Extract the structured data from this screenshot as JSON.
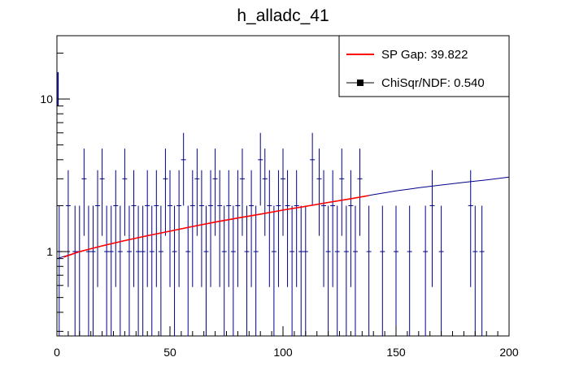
{
  "chart_data": {
    "type": "scatter",
    "title": "h_alladc_41",
    "xlabel": "",
    "ylabel": "",
    "xlim": [
      0,
      200
    ],
    "ylim": [
      0.28,
      26
    ],
    "yscale": "log",
    "grid": false,
    "legend_position": "top-right",
    "x_ticks": [
      "0",
      "50",
      "100",
      "150",
      "200"
    ],
    "y_ticks": [
      "1",
      "10"
    ],
    "legend": [
      {
        "label": "SP Gap: 39.822",
        "color": "#ff0000",
        "marker": "line"
      },
      {
        "label": "ChiSqr/NDF: 0.540",
        "color": "#000000",
        "marker": "square"
      }
    ],
    "histogram_points": [
      {
        "x": 1,
        "y": 1
      },
      {
        "x": 5,
        "y": 2
      },
      {
        "x": 8,
        "y": 1
      },
      {
        "x": 10,
        "y": 1
      },
      {
        "x": 12,
        "y": 3
      },
      {
        "x": 14,
        "y": 1
      },
      {
        "x": 16,
        "y": 1
      },
      {
        "x": 18,
        "y": 2
      },
      {
        "x": 20,
        "y": 3
      },
      {
        "x": 22,
        "y": 1
      },
      {
        "x": 24,
        "y": 1
      },
      {
        "x": 26,
        "y": 2
      },
      {
        "x": 28,
        "y": 1
      },
      {
        "x": 30,
        "y": 3
      },
      {
        "x": 32,
        "y": 1
      },
      {
        "x": 34,
        "y": 2
      },
      {
        "x": 36,
        "y": 1
      },
      {
        "x": 38,
        "y": 1
      },
      {
        "x": 40,
        "y": 2
      },
      {
        "x": 42,
        "y": 1
      },
      {
        "x": 44,
        "y": 2
      },
      {
        "x": 46,
        "y": 1
      },
      {
        "x": 48,
        "y": 3
      },
      {
        "x": 50,
        "y": 2
      },
      {
        "x": 52,
        "y": 1
      },
      {
        "x": 54,
        "y": 2
      },
      {
        "x": 56,
        "y": 4
      },
      {
        "x": 58,
        "y": 1
      },
      {
        "x": 60,
        "y": 2
      },
      {
        "x": 62,
        "y": 3
      },
      {
        "x": 64,
        "y": 2
      },
      {
        "x": 66,
        "y": 1
      },
      {
        "x": 68,
        "y": 2
      },
      {
        "x": 70,
        "y": 3
      },
      {
        "x": 72,
        "y": 2
      },
      {
        "x": 74,
        "y": 1
      },
      {
        "x": 76,
        "y": 2
      },
      {
        "x": 78,
        "y": 1
      },
      {
        "x": 80,
        "y": 2
      },
      {
        "x": 82,
        "y": 3
      },
      {
        "x": 84,
        "y": 1
      },
      {
        "x": 86,
        "y": 2
      },
      {
        "x": 88,
        "y": 1
      },
      {
        "x": 90,
        "y": 4
      },
      {
        "x": 92,
        "y": 3
      },
      {
        "x": 94,
        "y": 2
      },
      {
        "x": 96,
        "y": 1
      },
      {
        "x": 98,
        "y": 2
      },
      {
        "x": 100,
        "y": 3
      },
      {
        "x": 102,
        "y": 2
      },
      {
        "x": 104,
        "y": 1
      },
      {
        "x": 106,
        "y": 2
      },
      {
        "x": 108,
        "y": 1
      },
      {
        "x": 110,
        "y": 1
      },
      {
        "x": 113,
        "y": 4
      },
      {
        "x": 116,
        "y": 3
      },
      {
        "x": 118,
        "y": 2
      },
      {
        "x": 120,
        "y": 1
      },
      {
        "x": 122,
        "y": 2
      },
      {
        "x": 124,
        "y": 1
      },
      {
        "x": 126,
        "y": 3
      },
      {
        "x": 128,
        "y": 1
      },
      {
        "x": 130,
        "y": 2
      },
      {
        "x": 132,
        "y": 1
      },
      {
        "x": 134,
        "y": 3
      },
      {
        "x": 138,
        "y": 1
      },
      {
        "x": 144,
        "y": 1
      },
      {
        "x": 150,
        "y": 1
      },
      {
        "x": 156,
        "y": 1
      },
      {
        "x": 163,
        "y": 1
      },
      {
        "x": 166,
        "y": 2
      },
      {
        "x": 170,
        "y": 1
      },
      {
        "x": 183,
        "y": 2
      },
      {
        "x": 185,
        "y": 1
      },
      {
        "x": 188,
        "y": 1
      }
    ],
    "first_bin_spike": {
      "x": 0.5,
      "y": 12,
      "y_low": 9,
      "y_high": 15
    },
    "series": [
      {
        "name": "",
        "color": "#00008b",
        "x": [
          0,
          10,
          20,
          30,
          40,
          50,
          60,
          70,
          80,
          90,
          100,
          110,
          120,
          130,
          140,
          150,
          160,
          170,
          180,
          190,
          200
        ],
        "y": [
          0.9,
          1.0,
          1.09,
          1.18,
          1.27,
          1.36,
          1.46,
          1.56,
          1.66,
          1.76,
          1.87,
          1.98,
          2.1,
          2.22,
          2.36,
          2.5,
          2.62,
          2.73,
          2.84,
          2.95,
          3.08
        ]
      },
      {
        "name": "",
        "color": "#ff0000",
        "x": [
          3,
          10,
          20,
          30,
          40,
          50,
          60,
          70,
          80,
          90,
          100,
          110,
          120,
          130,
          138
        ],
        "y": [
          0.92,
          1.0,
          1.09,
          1.18,
          1.27,
          1.36,
          1.46,
          1.56,
          1.66,
          1.76,
          1.87,
          1.98,
          2.1,
          2.22,
          2.33
        ]
      }
    ]
  }
}
